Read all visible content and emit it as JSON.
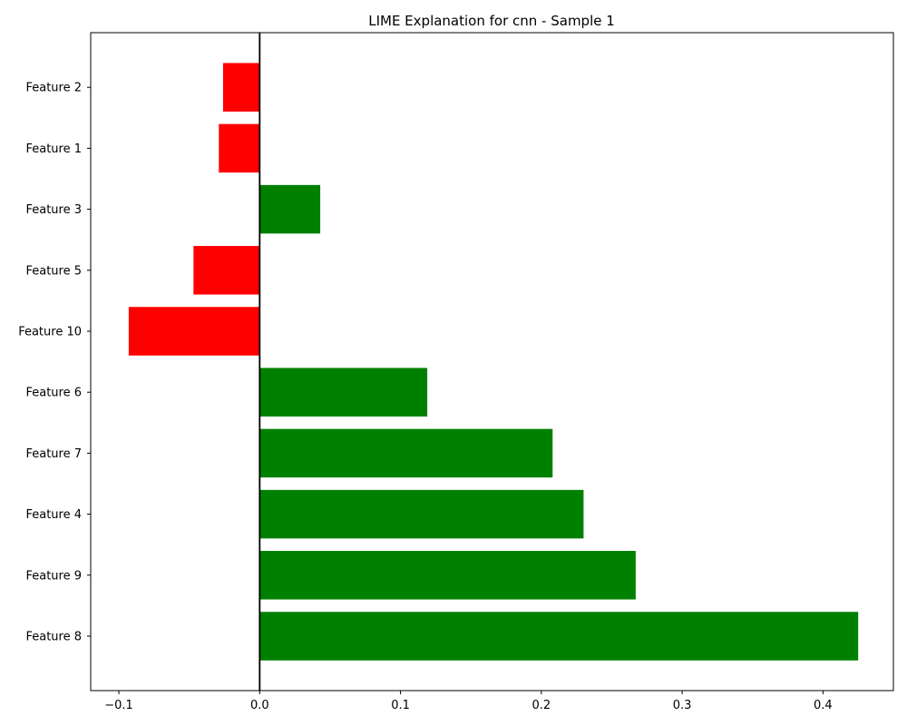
{
  "chart_data": {
    "type": "bar",
    "orientation": "horizontal",
    "title": "LIME Explanation for cnn - Sample 1",
    "xlabel": "",
    "ylabel": "",
    "xlim": [
      -0.12,
      0.45
    ],
    "xticks": [
      -0.1,
      0.0,
      0.1,
      0.2,
      0.3,
      0.4
    ],
    "xtick_labels": [
      "−0.1",
      "0.0",
      "0.1",
      "0.2",
      "0.3",
      "0.4"
    ],
    "grid": false,
    "categories": [
      "Feature 8",
      "Feature 9",
      "Feature 4",
      "Feature 7",
      "Feature 6",
      "Feature 10",
      "Feature 5",
      "Feature 3",
      "Feature 1",
      "Feature 2"
    ],
    "values": [
      0.425,
      0.267,
      0.23,
      0.208,
      0.119,
      -0.093,
      -0.047,
      0.043,
      -0.029,
      -0.026
    ],
    "colors": {
      "positive": "#008000",
      "negative": "#ff0000",
      "zero_line": "#000000"
    }
  }
}
